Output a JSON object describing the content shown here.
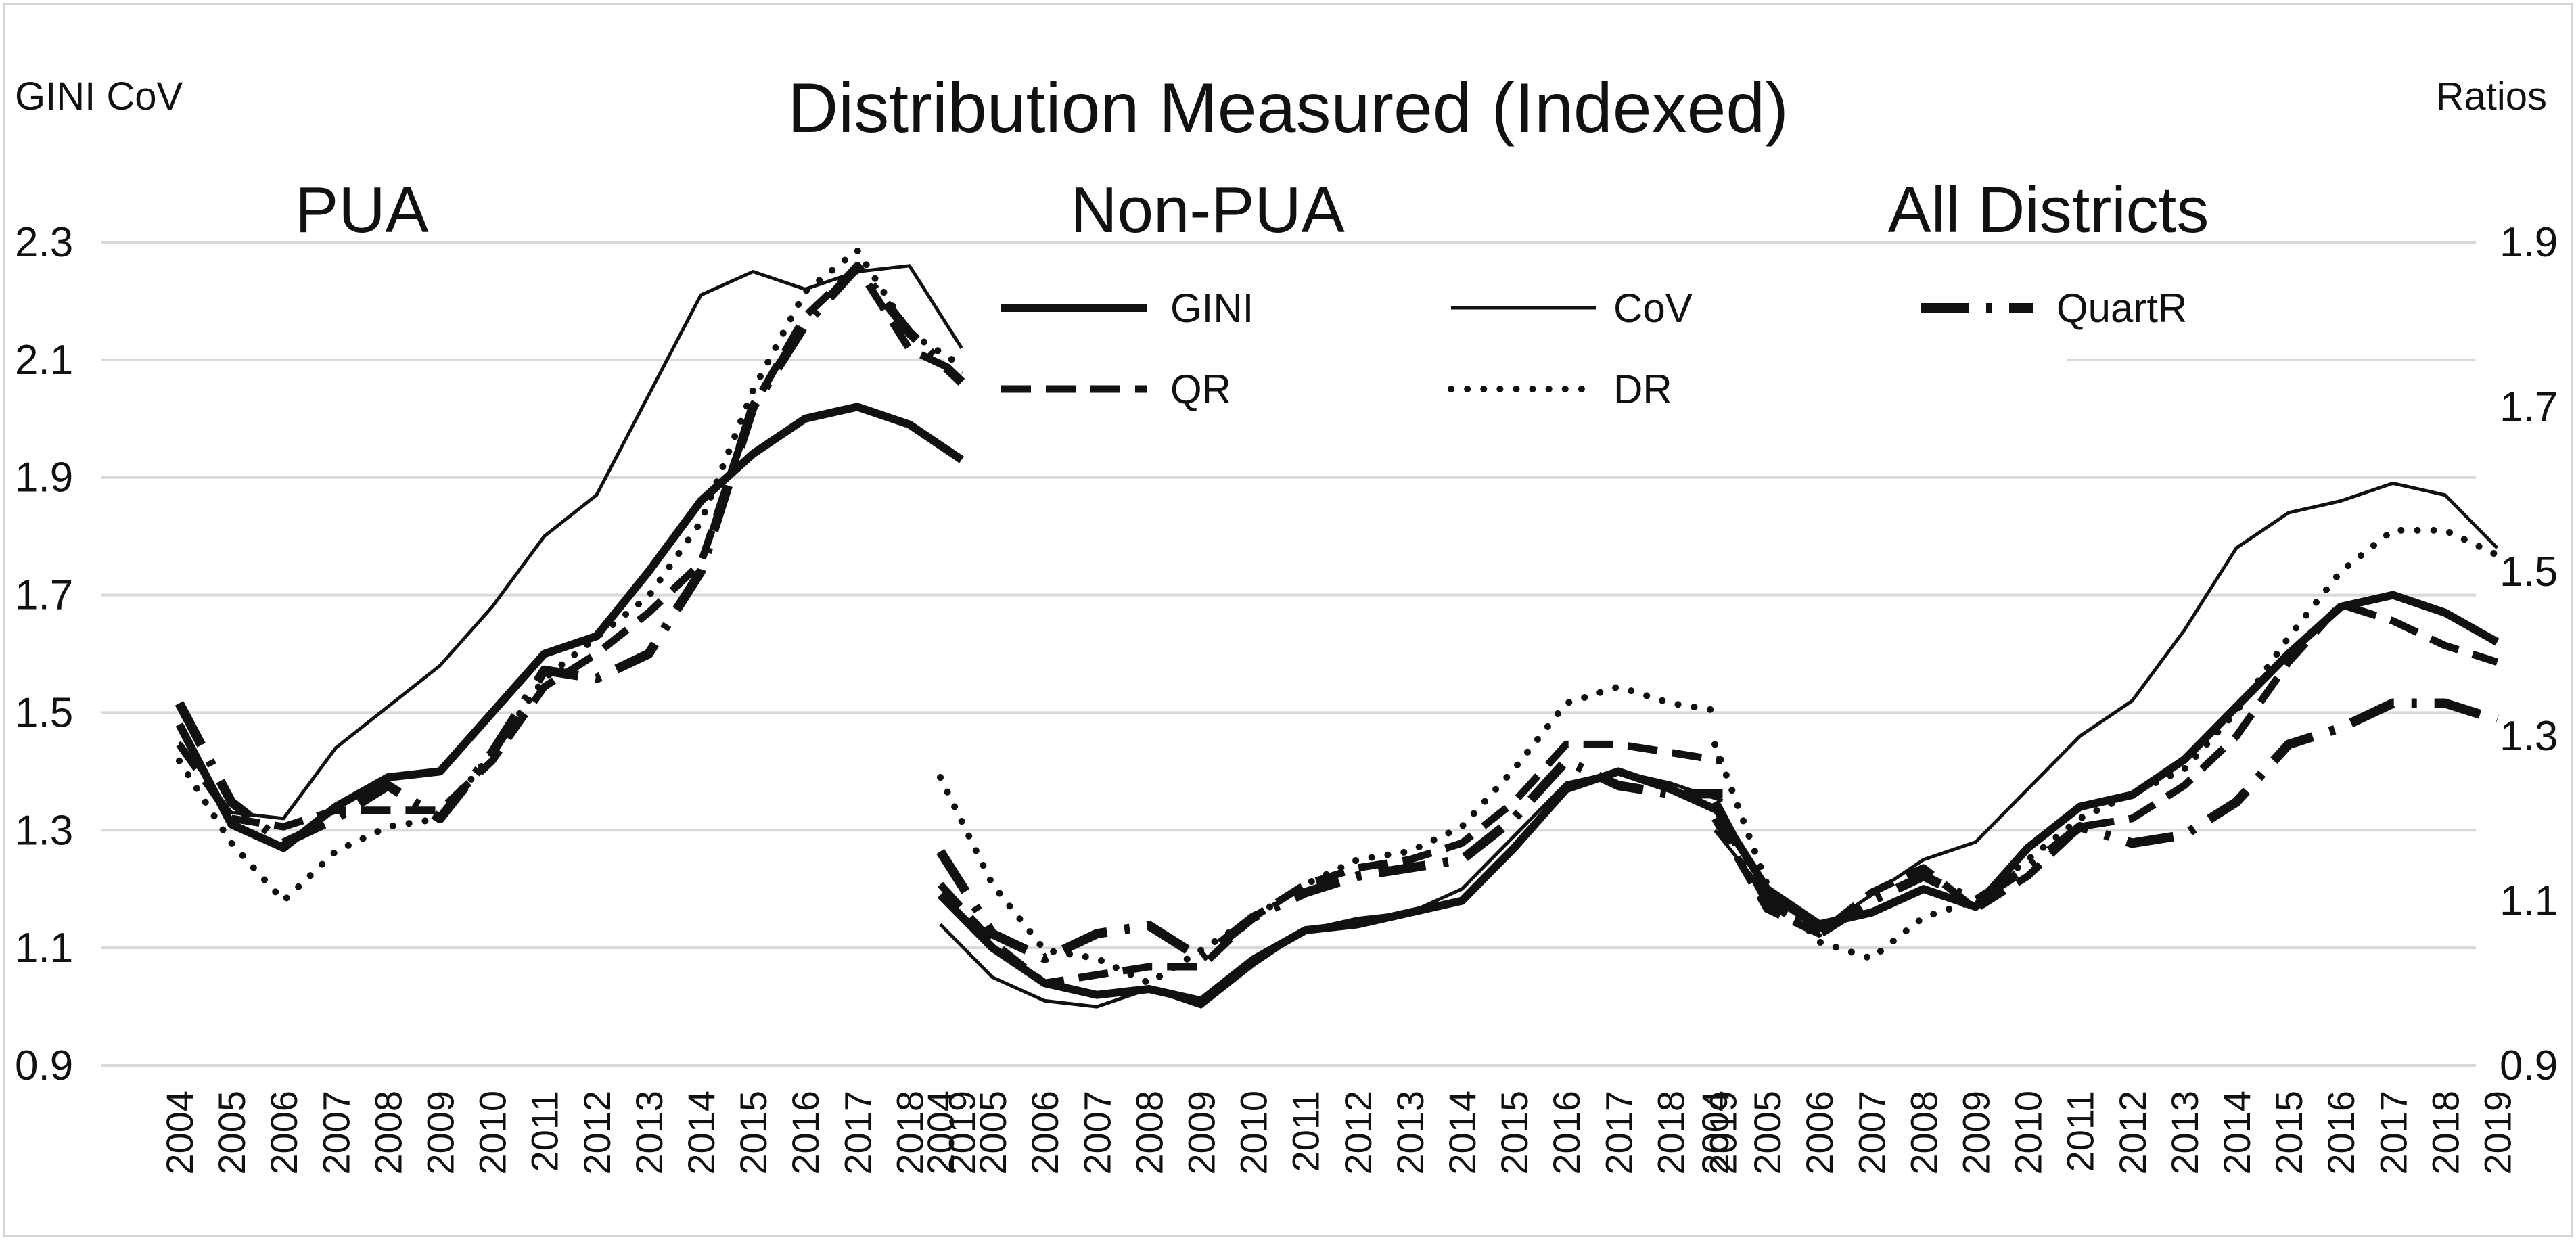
{
  "chart_data": {
    "type": "line",
    "title": "Distribution Measured (Indexed)",
    "left_axis_label": "GINI CoV",
    "right_axis_label": "Ratios",
    "left_ylim": [
      0.9,
      2.3
    ],
    "left_yticks": [
      "0.9",
      "1.1",
      "1.3",
      "1.5",
      "1.7",
      "1.9",
      "2.1",
      "2.3"
    ],
    "right_ylim": [
      0.9,
      1.9
    ],
    "right_yticks": [
      "0.9",
      "1.1",
      "1.3",
      "1.5",
      "1.7",
      "1.9"
    ],
    "years": [
      "2004",
      "2005",
      "2006",
      "2007",
      "2008",
      "2009",
      "2010",
      "2011",
      "2012",
      "2013",
      "2014",
      "2015",
      "2016",
      "2017",
      "2018",
      "2019"
    ],
    "grid": true,
    "legend": [
      {
        "key": "GINI",
        "label": "GINI",
        "axis": "left"
      },
      {
        "key": "CoV",
        "label": "CoV",
        "axis": "left"
      },
      {
        "key": "QuartR",
        "label": "QuartR",
        "axis": "right"
      },
      {
        "key": "QR",
        "label": "QR",
        "axis": "right"
      },
      {
        "key": "DR",
        "label": "DR",
        "axis": "right"
      }
    ],
    "panels": [
      {
        "name": "PUA",
        "series": {
          "GINI": [
            1.48,
            1.31,
            1.27,
            1.34,
            1.39,
            1.4,
            1.5,
            1.6,
            1.63,
            1.74,
            1.86,
            1.94,
            2.0,
            2.02,
            1.99,
            1.93
          ],
          "CoV": [
            1.45,
            1.33,
            1.32,
            1.44,
            1.51,
            1.58,
            1.68,
            1.8,
            1.87,
            2.04,
            2.21,
            2.25,
            2.22,
            2.25,
            2.26,
            2.12
          ],
          "QuartR": [
            1.34,
            1.22,
            1.17,
            1.2,
            1.24,
            1.2,
            1.28,
            1.38,
            1.37,
            1.4,
            1.5,
            1.7,
            1.8,
            1.87,
            1.79,
            1.73
          ],
          "QR": [
            1.29,
            1.2,
            1.19,
            1.21,
            1.21,
            1.21,
            1.27,
            1.36,
            1.4,
            1.45,
            1.51,
            1.7,
            1.81,
            1.87,
            1.77,
            1.74
          ],
          "DR": [
            1.27,
            1.17,
            1.1,
            1.16,
            1.19,
            1.2,
            1.28,
            1.37,
            1.42,
            1.47,
            1.56,
            1.72,
            1.84,
            1.89,
            1.79,
            1.75
          ]
        }
      },
      {
        "name": "Non-PUA",
        "series": {
          "GINI": [
            1.19,
            1.1,
            1.04,
            1.02,
            1.03,
            1.01,
            1.08,
            1.13,
            1.14,
            1.16,
            1.18,
            1.27,
            1.37,
            1.4,
            1.37,
            1.33
          ],
          "CoV": [
            1.14,
            1.05,
            1.01,
            1.0,
            1.03,
            1.0,
            1.07,
            1.13,
            1.15,
            1.16,
            1.2,
            1.29,
            1.38,
            1.4,
            1.38,
            1.35
          ],
          "QuartR": [
            1.16,
            1.06,
            1.03,
            1.06,
            1.07,
            1.03,
            1.08,
            1.11,
            1.13,
            1.14,
            1.15,
            1.2,
            1.27,
            1.24,
            1.23,
            1.23
          ],
          "QR": [
            1.12,
            1.05,
            1.0,
            1.01,
            1.02,
            1.02,
            1.08,
            1.12,
            1.14,
            1.15,
            1.17,
            1.22,
            1.29,
            1.29,
            1.28,
            1.27
          ],
          "DR": [
            1.25,
            1.12,
            1.04,
            1.03,
            1.0,
            1.04,
            1.08,
            1.12,
            1.15,
            1.16,
            1.19,
            1.26,
            1.34,
            1.36,
            1.34,
            1.33
          ]
        }
      },
      {
        "name": "All Districts",
        "series": {
          "GINI": [
            1.34,
            1.2,
            1.14,
            1.16,
            1.2,
            1.17,
            1.27,
            1.34,
            1.36,
            1.42,
            1.51,
            1.6,
            1.68,
            1.7,
            1.67,
            1.62
          ],
          "CoV": [
            1.3,
            1.19,
            1.13,
            1.19,
            1.25,
            1.28,
            1.37,
            1.46,
            1.52,
            1.64,
            1.78,
            1.84,
            1.86,
            1.89,
            1.87,
            1.78
          ],
          "QuartR": [
            1.22,
            1.1,
            1.06,
            1.1,
            1.13,
            1.1,
            1.14,
            1.19,
            1.17,
            1.18,
            1.22,
            1.29,
            1.31,
            1.34,
            1.34,
            1.32
          ],
          "QR": [
            1.2,
            1.09,
            1.06,
            1.11,
            1.14,
            1.09,
            1.13,
            1.19,
            1.2,
            1.24,
            1.3,
            1.39,
            1.46,
            1.44,
            1.41,
            1.39
          ],
          "DR": [
            1.29,
            1.12,
            1.05,
            1.03,
            1.08,
            1.1,
            1.15,
            1.2,
            1.23,
            1.26,
            1.33,
            1.42,
            1.5,
            1.55,
            1.55,
            1.52
          ]
        }
      }
    ]
  }
}
